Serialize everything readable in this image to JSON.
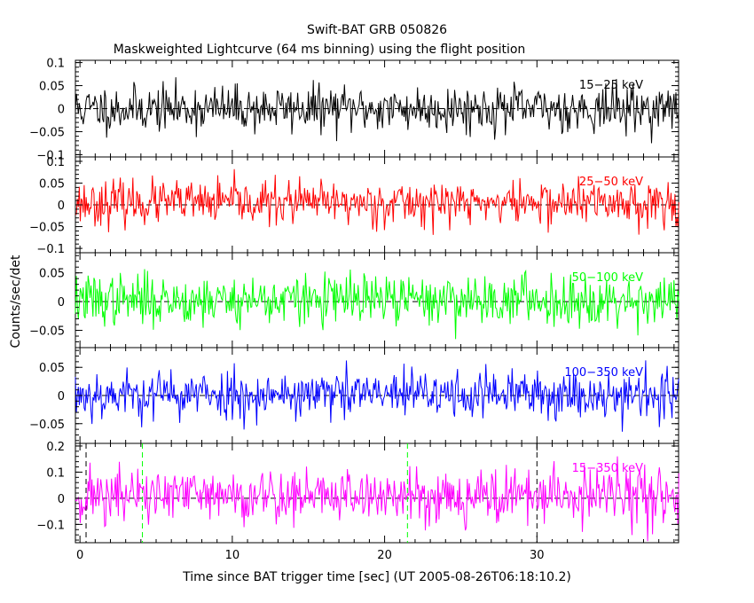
{
  "chart_data": {
    "type": "line",
    "title": "Swift-BAT GRB 050826",
    "subtitle": "Maskweighted Lightcurve (64 ms binning) using the flight position",
    "xlabel": "Time since BAT trigger time [sec] (UT 2005-08-26T06:18:10.2)",
    "ylabel": "Counts/sec/det",
    "xlim": [
      -0.3,
      39.3
    ],
    "x_ticks": [
      0,
      10,
      20,
      30
    ],
    "bin_seconds": 0.064,
    "panels": [
      {
        "band": "15-25 keV",
        "label": "15−25 keV",
        "color": "#000000",
        "ylim": [
          -0.105,
          0.105
        ],
        "yticks": [
          0.1,
          0.05,
          0,
          -0.05,
          -0.1
        ],
        "ytick_labels": [
          "0.1",
          "0.05",
          "0",
          "−0.05",
          "−0.1"
        ],
        "noise_sigma": 0.025,
        "mean": 0.0,
        "seed": 11
      },
      {
        "band": "25-50 keV",
        "label": "25−50 keV",
        "color": "#ff0000",
        "ylim": [
          -0.11,
          0.11
        ],
        "yticks": [
          0.1,
          0.05,
          0,
          -0.05,
          -0.1
        ],
        "ytick_labels": [
          "0.1",
          "0.05",
          "0",
          "−0.05",
          "−0.1"
        ],
        "noise_sigma": 0.025,
        "mean": 0.005,
        "seed": 23
      },
      {
        "band": "50-100 keV",
        "label": "50−100 keV",
        "color": "#00ff00",
        "ylim": [
          -0.08,
          0.085
        ],
        "yticks": [
          0.05,
          0,
          -0.05
        ],
        "ytick_labels": [
          "0.05",
          "0",
          "−0.05"
        ],
        "noise_sigma": 0.022,
        "mean": 0.003,
        "seed": 37
      },
      {
        "band": "100-350 keV",
        "label": "100−350 keV",
        "color": "#0000ff",
        "ylim": [
          -0.085,
          0.085
        ],
        "yticks": [
          0.05,
          0,
          -0.05
        ],
        "ytick_labels": [
          "0.05",
          "0",
          "−0.05"
        ],
        "noise_sigma": 0.022,
        "mean": 0.002,
        "seed": 53
      },
      {
        "band": "15-350 keV",
        "label": "15−350 keV",
        "color": "#ff00ff",
        "ylim": [
          -0.17,
          0.21
        ],
        "yticks": [
          0.2,
          0.1,
          0,
          -0.1
        ],
        "ytick_labels": [
          "0.2",
          "0.1",
          "0",
          "−0.1"
        ],
        "noise_sigma": 0.055,
        "mean": 0.01,
        "seed": 71
      }
    ],
    "markers": [
      {
        "x": 0.4,
        "color": "#000000",
        "panel": 4,
        "style": "dashed"
      },
      {
        "x": 4.1,
        "color": "#00ff00",
        "panel": 4,
        "style": "dashed"
      },
      {
        "x": 21.5,
        "color": "#00ff00",
        "panel": 4,
        "style": "dashed"
      },
      {
        "x": 30.0,
        "color": "#000000",
        "panel": 4,
        "style": "dashed"
      }
    ]
  }
}
